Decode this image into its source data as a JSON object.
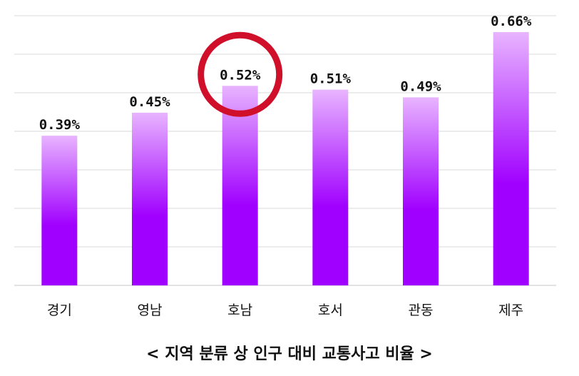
{
  "chart_data": {
    "type": "bar",
    "title": "< 지역 분류 상 인구 대비 교통사고 비율 >",
    "categories": [
      "경기",
      "영남",
      "호남",
      "호서",
      "관동",
      "제주"
    ],
    "values": [
      0.39,
      0.45,
      0.52,
      0.51,
      0.49,
      0.66
    ],
    "data_labels": [
      "0.39%",
      "0.45%",
      "0.52%",
      "0.51%",
      "0.49%",
      "0.66%"
    ],
    "ylim": [
      0,
      0.66
    ],
    "grid": true,
    "highlighted_category": "호남",
    "colors": {
      "bar_top": "#e8b4ff",
      "bar_bottom": "#a000ff",
      "highlight_ring": "#d0102a",
      "grid": "#d9d9d9"
    }
  }
}
